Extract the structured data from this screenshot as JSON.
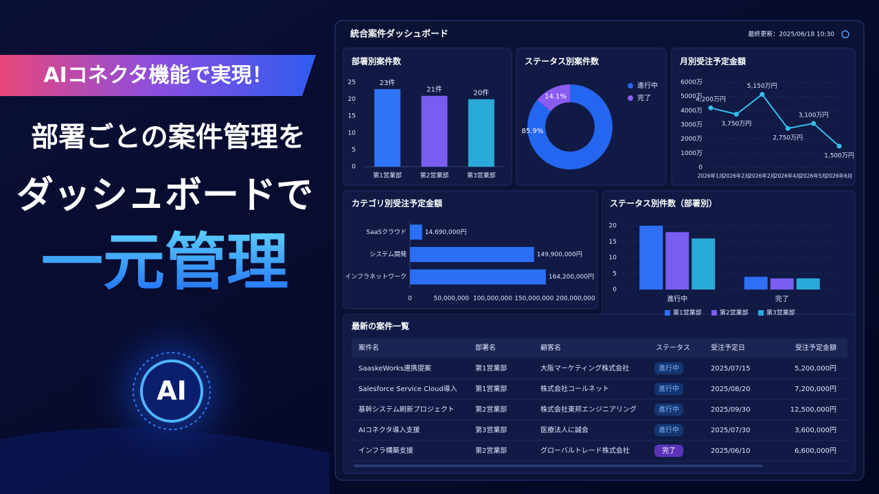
{
  "banner": {
    "tag": "AIコネクタ機能で実現！",
    "line1": "部署ごとの案件管理を",
    "line2": "ダッシュボードで",
    "line3": "一元管理",
    "badge": "AI"
  },
  "dashboard": {
    "title": "統合案件ダッシュボード",
    "updated": "最終更新：2025/06/18 10:30"
  },
  "chart_data": [
    {
      "type": "bar",
      "title": "部署別案件数",
      "categories": [
        "第1営業部",
        "第2営業部",
        "第3営業部"
      ],
      "values": [
        23,
        21,
        20
      ],
      "value_labels": [
        "23件",
        "21件",
        "20件"
      ],
      "colors": [
        "#2f74f6",
        "#7a5cf0",
        "#2aaad8"
      ],
      "ylim": [
        0,
        25
      ],
      "yticks": [
        0,
        5,
        10,
        15,
        20,
        25
      ],
      "grid": false
    },
    {
      "type": "pie",
      "title": "ステータス別案件数",
      "categories": [
        "進行中",
        "完了"
      ],
      "values": [
        85.9,
        14.1
      ],
      "value_labels": [
        "85.9%",
        "14.1%"
      ],
      "colors": [
        "#2566f0",
        "#8a5cf0"
      ]
    },
    {
      "type": "line",
      "title": "月別受注予定金額",
      "x": [
        "2026年1月",
        "2026年2月",
        "2026年2月",
        "2026年4月",
        "2026年5月",
        "2026年6月"
      ],
      "values": [
        4200,
        3750,
        5150,
        2750,
        3100,
        1500
      ],
      "value_labels": [
        "4,200万円",
        "3,750万円",
        "5,150万円",
        "2,750万円",
        "3,100万円",
        "1,500万円"
      ],
      "color": "#35c0ee",
      "ylim": [
        0,
        6000
      ],
      "yticks": [
        0,
        {
          "value": 1000,
          "label": "1000万"
        },
        {
          "value": 2000,
          "label": "2000万"
        },
        {
          "value": 3000,
          "label": "3000万"
        },
        {
          "value": 4000,
          "label": "4000万"
        },
        {
          "value": 5000,
          "label": "5000万"
        },
        {
          "value": 6000,
          "label": "6000万"
        }
      ],
      "grid": true
    },
    {
      "type": "hbar",
      "title": "カテゴリ別受注予定金額",
      "categories": [
        "SaaSクラウド",
        "システム開発",
        "インフラネットワーク"
      ],
      "values": [
        14690000,
        149900000,
        164200000
      ],
      "value_labels": [
        "14,690,000円",
        "149,900,000円",
        "164,200,000円"
      ],
      "color": "#2a6ff5",
      "xlim": [
        0,
        200000000
      ],
      "xticks": [
        0,
        {
          "value": 50000000,
          "label": "50,000,000"
        },
        {
          "value": 100000000,
          "label": "100,000,000"
        },
        {
          "value": 150000000,
          "label": "150,000,000"
        },
        {
          "value": 200000000,
          "label": "200,000,000"
        }
      ]
    },
    {
      "type": "grouped_bar",
      "title": "ステータス別件数（部署別）",
      "categories": [
        "進行中",
        "完了"
      ],
      "series": [
        {
          "name": "第1営業部",
          "color": "#2f6ff5",
          "values": [
            20,
            4
          ]
        },
        {
          "name": "第2営業部",
          "color": "#7a5cf0",
          "values": [
            18,
            3.5
          ]
        },
        {
          "name": "第3営業部",
          "color": "#2aaad8",
          "values": [
            16,
            3.5
          ]
        }
      ],
      "ylim": [
        0,
        20
      ],
      "yticks": [
        0,
        5,
        10,
        15,
        20
      ],
      "grid": true
    }
  ],
  "table": {
    "title": "最新の案件一覧",
    "columns": [
      "案件名",
      "部署名",
      "顧客名",
      "ステータス",
      "受注予定日",
      "受注予定金額"
    ],
    "rows": [
      [
        "SaaskeWorks連携提案",
        "第1営業部",
        "大阪マーケティング株式会社",
        "進行中",
        "2025/07/15",
        "5,200,000円"
      ],
      [
        "Salesforce Service Cloud導入",
        "第1営業部",
        "株式会社コールネット",
        "進行中",
        "2025/08/20",
        "7,200,000円"
      ],
      [
        "基幹システム刷新プロジェクト",
        "第2営業部",
        "株式会社東邦エンジニアリング",
        "進行中",
        "2025/09/30",
        "12,500,000円"
      ],
      [
        "AIコネクタ導入支援",
        "第3営業部",
        "医療法人に誠会",
        "進行中",
        "2025/07/30",
        "3,600,000円"
      ],
      [
        "インフラ構築支援",
        "第2営業部",
        "グローバルトレード株式会社",
        "完了",
        "2025/06/10",
        "6,600,000円"
      ]
    ]
  }
}
